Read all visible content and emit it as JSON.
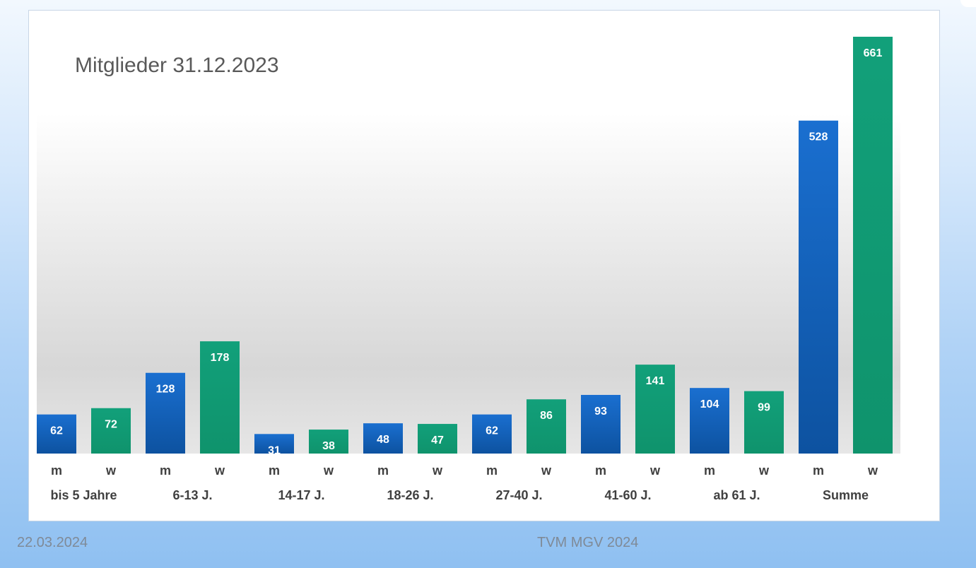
{
  "footer": {
    "date": "22.03.2024",
    "source": "TVM MGV 2024"
  },
  "colors": {
    "male": "#1565c0",
    "female": "#119b72"
  },
  "chart_data": {
    "type": "bar",
    "title": "Mitglieder 31.12.2023",
    "categories": [
      "bis 5 Jahre",
      "6-13 J.",
      "14-17 J.",
      "18-26 J.",
      "27-40 J.",
      "41-60 J.",
      "ab 61 J.",
      "Summe"
    ],
    "series": [
      {
        "name": "m",
        "values": [
          62,
          128,
          31,
          48,
          62,
          93,
          104,
          528
        ]
      },
      {
        "name": "w",
        "values": [
          72,
          178,
          38,
          47,
          86,
          141,
          99,
          661
        ]
      }
    ],
    "ylim": [
      0,
      661
    ],
    "grid": false,
    "legend": "none"
  }
}
